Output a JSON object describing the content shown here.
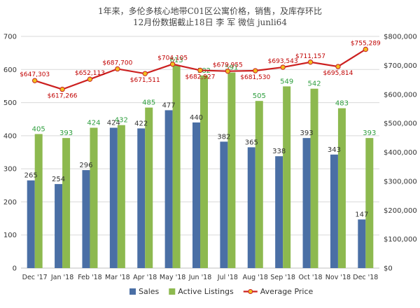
{
  "chart_data": {
    "type": "bar",
    "title_lines": [
      "1年来，多伦多核心地带C01区公寓价格，销售，及库存环比",
      "12月份数据截止18日 李 军 微信 junli64"
    ],
    "categories": [
      "Dec '17",
      "Jan '18",
      "Feb '18",
      "Mar '18",
      "Apr '18",
      "May '18",
      "Jun '18",
      "Jul '18",
      "Aug '18",
      "Sep '18",
      "Oct '18",
      "Nov '18",
      "Dec '18"
    ],
    "series": [
      {
        "name": "Sales",
        "type": "bar",
        "axis": "left",
        "color": "#4a6fa5",
        "values": [
          265,
          254,
          296,
          424,
          422,
          477,
          440,
          382,
          365,
          338,
          393,
          343,
          147
        ]
      },
      {
        "name": "Active Listings",
        "type": "bar",
        "axis": "left",
        "color": "#8db94f",
        "values": [
          405,
          393,
          424,
          432,
          485,
          613,
          582,
          591,
          505,
          549,
          542,
          483,
          393
        ]
      },
      {
        "name": "Average Price",
        "type": "line",
        "axis": "right",
        "color": "#cc2020",
        "marker_color": "#f0c020",
        "values": [
          647303,
          617266,
          652113,
          687700,
          671511,
          704105,
          682927,
          679955,
          681530,
          693543,
          711157,
          695814,
          755289
        ],
        "labels": [
          "$647,303",
          "$617,266",
          "$652,113",
          "$687,700",
          "$671,511",
          "$704,105",
          "$682,927",
          "$679,955",
          "$681,530",
          "$693,543",
          "$711,157",
          "$695,814",
          "$755,289"
        ]
      }
    ],
    "y_left": {
      "min": 0,
      "max": 700,
      "step": 100,
      "ticks": [
        "0",
        "100",
        "200",
        "300",
        "400",
        "500",
        "600",
        "700"
      ]
    },
    "y_right": {
      "min": 0,
      "max": 800000,
      "step": 100000,
      "ticks": [
        "$0",
        "$100,000",
        "$200,000",
        "$300,000",
        "$400,000",
        "$500,000",
        "$600,000",
        "$700,000",
        "$800,000"
      ]
    },
    "grid": true,
    "legend": {
      "placement": "bottom",
      "items": [
        "Sales",
        "Active Listings",
        "Average Price"
      ]
    }
  }
}
